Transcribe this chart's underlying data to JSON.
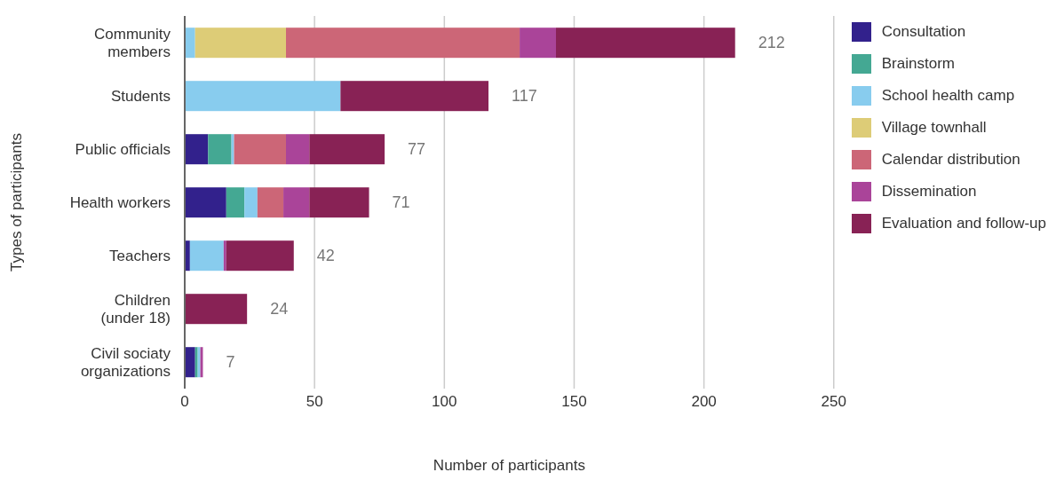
{
  "chart_data": {
    "type": "bar",
    "orientation": "horizontal",
    "stacked": true,
    "xlabel": "Number of participants",
    "ylabel": "Types of participants",
    "categories": [
      "Community\nmembers",
      "Students",
      "Public officials",
      "Health workers",
      "Teachers",
      "Children\n(under 18)",
      "Civil sociaty\norganizations"
    ],
    "series": [
      {
        "name": "Consultation",
        "color": "#32218c",
        "values": [
          0,
          0,
          9,
          16,
          2,
          0,
          4
        ]
      },
      {
        "name": "Brainstorm",
        "color": "#44a893",
        "values": [
          0,
          0,
          9,
          7,
          0,
          0,
          1
        ]
      },
      {
        "name": "School health camp",
        "color": "#88ccee",
        "values": [
          4,
          60,
          1,
          5,
          13,
          0,
          1
        ]
      },
      {
        "name": "Village townhall",
        "color": "#ddcc77",
        "values": [
          35,
          0,
          0,
          0,
          0,
          0,
          0
        ]
      },
      {
        "name": "Calendar distribution",
        "color": "#cc6677",
        "values": [
          90,
          0,
          20,
          10,
          0,
          0,
          0
        ]
      },
      {
        "name": "Dissemination",
        "color": "#aa4499",
        "values": [
          14,
          0,
          9,
          10,
          1,
          0,
          1
        ]
      },
      {
        "name": "Evaluation and follow-up",
        "color": "#882255",
        "values": [
          69,
          57,
          29,
          23,
          26,
          24,
          0
        ]
      }
    ],
    "totals": [
      "212",
      "117",
      "77",
      "71",
      "42",
      "24",
      "7"
    ],
    "xlim": [
      0,
      250
    ],
    "xticks": [
      0,
      50,
      100,
      150,
      200,
      250
    ],
    "grid": "x",
    "legend": "right"
  }
}
